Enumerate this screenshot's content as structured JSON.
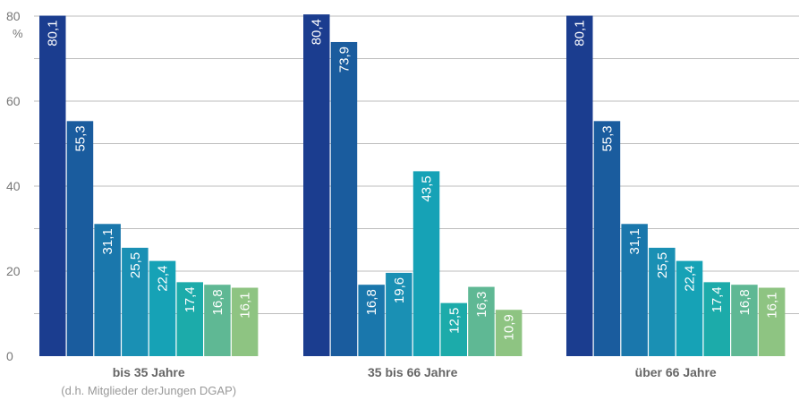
{
  "chart_data": {
    "type": "bar",
    "unit_label": "%",
    "ylim": [
      0,
      80
    ],
    "yticks": [
      "0",
      "20",
      "40",
      "60",
      "80"
    ],
    "grid": true,
    "categories": [
      {
        "label": "bis 35 Jahre",
        "sublabel": "(d.h. Mitglieder derJungen DGAP)"
      },
      {
        "label": "35 bis 66 Jahre",
        "sublabel": ""
      },
      {
        "label": "über 66 Jahre",
        "sublabel": ""
      }
    ],
    "groups": [
      {
        "values": [
          80.1,
          55.3,
          31.1,
          25.5,
          22.4,
          17.4,
          16.8,
          16.1
        ],
        "labels": [
          "80,1",
          "55,3",
          "31,1",
          "25,5",
          "22,4",
          "17,4",
          "16,8",
          "16,1"
        ]
      },
      {
        "values": [
          80.4,
          73.9,
          16.8,
          19.6,
          43.5,
          12.5,
          16.3,
          10.9
        ],
        "labels": [
          "80,4",
          "73,9",
          "16,8",
          "19,6",
          "43,5",
          "12,5",
          "16,3",
          "10,9"
        ]
      },
      {
        "values": [
          80.1,
          55.3,
          31.1,
          25.5,
          22.4,
          17.4,
          16.8,
          16.1
        ],
        "labels": [
          "80,1",
          "55,3",
          "31,1",
          "25,5",
          "22,4",
          "17,4",
          "16,8",
          "16,1"
        ]
      }
    ],
    "bar_colors": [
      "#1b3d8f",
      "#1a5c9e",
      "#1a77ac",
      "#1a90b4",
      "#16a2b6",
      "#1cabaa",
      "#5fb894",
      "#8ec482"
    ]
  }
}
